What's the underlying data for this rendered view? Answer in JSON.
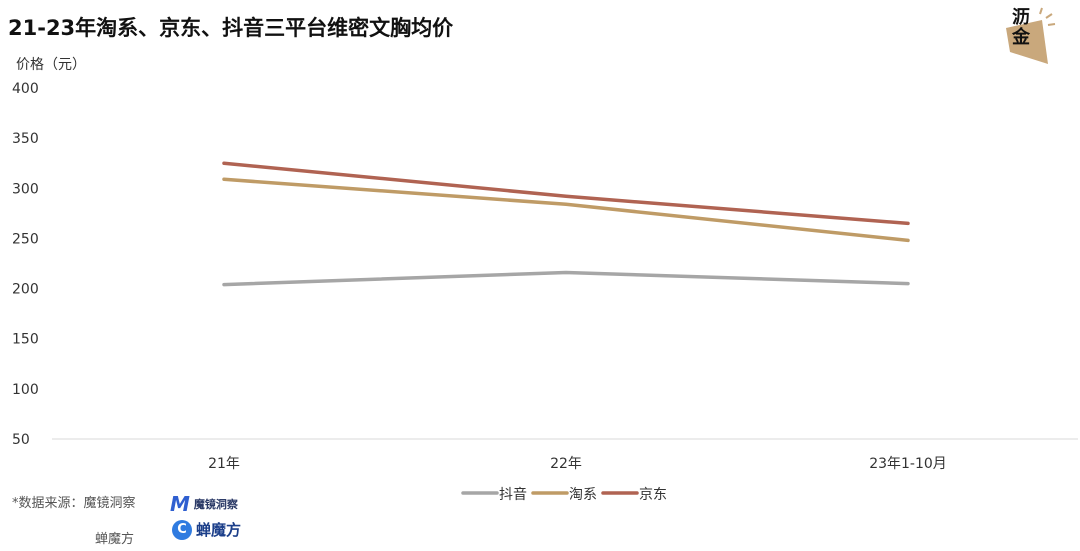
{
  "header": {
    "title": "21-23年淘系、京东、抖音三平台维密文胸均价"
  },
  "chart_data": {
    "type": "line",
    "ylabel": "价格（元）",
    "categories": [
      "21年",
      "22年",
      "23年1-10月"
    ],
    "ylim": [
      50,
      400
    ],
    "yticks": [
      400,
      350,
      300,
      250,
      200,
      150,
      100,
      50
    ],
    "grid": false,
    "legend": "bottom-center",
    "series": [
      {
        "name": "抖音",
        "color": "#a6a6a6",
        "values": [
          204,
          216,
          205
        ]
      },
      {
        "name": "淘系",
        "color": "#bf9b66",
        "values": [
          309,
          284,
          248
        ]
      },
      {
        "name": "京东",
        "color": "#b06352",
        "values": [
          325,
          292,
          265
        ]
      }
    ]
  },
  "footer": {
    "source": "*数据来源：魔镜洞察",
    "source_second": "蝉魔方",
    "logo1_text": "魔镜洞察",
    "logo2_text": "蝉魔方"
  },
  "brand": {
    "line1": "沥",
    "line2": "金"
  }
}
